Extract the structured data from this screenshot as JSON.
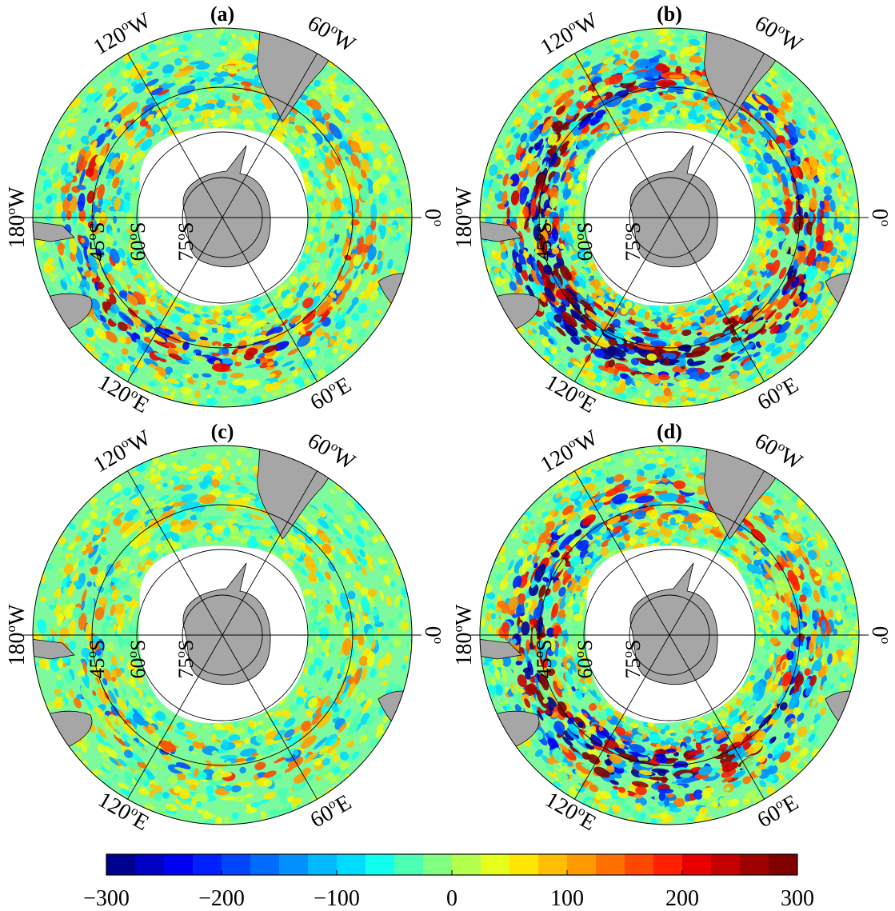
{
  "figure": {
    "colormap": [
      "#00008f",
      "#0000c4",
      "#0000f0",
      "#0020ff",
      "#0046ff",
      "#006cff",
      "#0090ff",
      "#00b8ff",
      "#00dcff",
      "#10ffee",
      "#4dffb3",
      "#80ff80",
      "#b3ff4d",
      "#e6ff1a",
      "#ffe600",
      "#ffbf00",
      "#ff9900",
      "#ff7000",
      "#ff4800",
      "#ff2000",
      "#e80000",
      "#c40000",
      "#9e0000",
      "#800000"
    ],
    "land_color": "#a6a6a6",
    "ocean_neutral": "#7dfc9b",
    "grid_color": "#000000"
  },
  "panels": [
    {
      "id": "a",
      "label": "(a)",
      "intensity": 0.55,
      "seed": 11
    },
    {
      "id": "b",
      "label": "(b)",
      "intensity": 1.0,
      "seed": 23
    },
    {
      "id": "c",
      "label": "(c)",
      "intensity": 0.35,
      "seed": 37
    },
    {
      "id": "d",
      "label": "(d)",
      "intensity": 0.85,
      "seed": 51
    }
  ],
  "longitude_labels": {
    "w120": {
      "num": "120",
      "deg": "o",
      "dir": "W"
    },
    "w60": {
      "num": "60",
      "deg": "o",
      "dir": "W"
    },
    "w180": {
      "num": "180",
      "deg": "o",
      "dir": "W"
    },
    "e0": {
      "num": "0",
      "deg": "o",
      "dir": ""
    },
    "e120": {
      "num": "120",
      "deg": "o",
      "dir": "E"
    },
    "e60": {
      "num": "60",
      "deg": "o",
      "dir": "E"
    }
  },
  "latitude_labels": {
    "s45": {
      "num": "45",
      "deg": "o",
      "dir": "S"
    },
    "s60": {
      "num": "60",
      "deg": "o",
      "dir": "S"
    },
    "s75": {
      "num": "75",
      "deg": "o",
      "dir": "S"
    }
  },
  "colorbar": {
    "min": -300,
    "max": 300,
    "ticks": [
      {
        "value": -300,
        "label": "−300"
      },
      {
        "value": -200,
        "label": "−200"
      },
      {
        "value": -100,
        "label": "−100"
      },
      {
        "value": 0,
        "label": "0"
      },
      {
        "value": 100,
        "label": "100"
      },
      {
        "value": 200,
        "label": "200"
      },
      {
        "value": 300,
        "label": "300"
      }
    ]
  }
}
